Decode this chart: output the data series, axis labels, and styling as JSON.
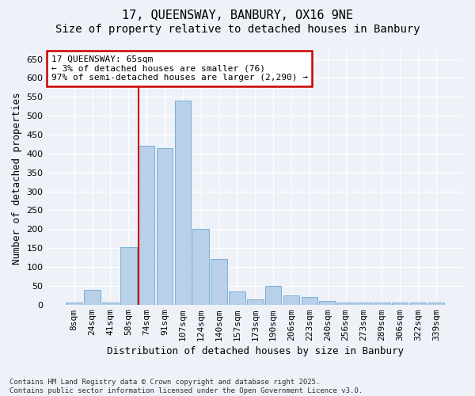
{
  "title": "17, QUEENSWAY, BANBURY, OX16 9NE",
  "subtitle": "Size of property relative to detached houses in Banbury",
  "xlabel": "Distribution of detached houses by size in Banbury",
  "ylabel": "Number of detached properties",
  "footer_line1": "Contains HM Land Registry data © Crown copyright and database right 2025.",
  "footer_line2": "Contains public sector information licensed under the Open Government Licence v3.0.",
  "categories": [
    "8sqm",
    "24sqm",
    "41sqm",
    "58sqm",
    "74sqm",
    "91sqm",
    "107sqm",
    "124sqm",
    "140sqm",
    "157sqm",
    "173sqm",
    "190sqm",
    "206sqm",
    "223sqm",
    "240sqm",
    "256sqm",
    "273sqm",
    "289sqm",
    "306sqm",
    "322sqm",
    "339sqm"
  ],
  "values": [
    5,
    40,
    5,
    152,
    420,
    415,
    540,
    200,
    120,
    35,
    15,
    50,
    25,
    20,
    10,
    5,
    5,
    5,
    5,
    5,
    5
  ],
  "bar_color": "#b8d0ea",
  "bar_edge_color": "#7aafd4",
  "vline_x": 3.55,
  "vline_color": "#cc0000",
  "annotation_text": "17 QUEENSWAY: 65sqm\n← 3% of detached houses are smaller (76)\n97% of semi-detached houses are larger (2,290) →",
  "annotation_box_color": "#ffffff",
  "annotation_box_edge": "#cc0000",
  "ylim": [
    0,
    670
  ],
  "yticks": [
    0,
    50,
    100,
    150,
    200,
    250,
    300,
    350,
    400,
    450,
    500,
    550,
    600,
    650
  ],
  "background_color": "#eef2f8",
  "grid_color": "#ffffff",
  "title_fontsize": 11,
  "subtitle_fontsize": 10,
  "ylabel_fontsize": 9,
  "xlabel_fontsize": 9,
  "tick_fontsize": 8,
  "annotation_fontsize": 8,
  "footer_fontsize": 6.5
}
